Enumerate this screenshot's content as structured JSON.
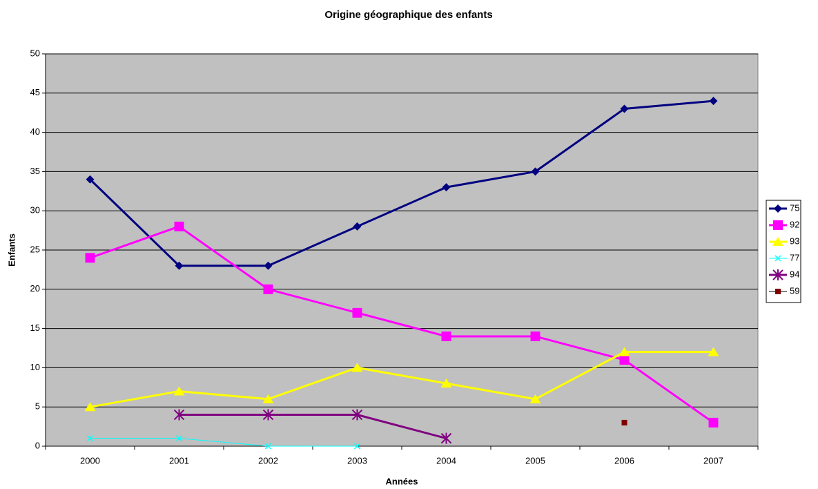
{
  "chart_data": {
    "type": "line",
    "title": "Origine géographique des enfants",
    "x_label": "Années",
    "y_label": "Enfants",
    "categories": [
      "2000",
      "2001",
      "2002",
      "2003",
      "2004",
      "2005",
      "2006",
      "2007"
    ],
    "series": [
      {
        "name": "75",
        "color": "#000080",
        "marker": "diamond",
        "line_width": 3,
        "values": [
          34,
          23,
          23,
          28,
          33,
          35,
          43,
          44
        ]
      },
      {
        "name": "92",
        "color": "#ff00ff",
        "marker": "square",
        "line_width": 3,
        "values": [
          24,
          28,
          20,
          17,
          14,
          14,
          11,
          3
        ]
      },
      {
        "name": "93",
        "color": "#ffff00",
        "marker": "triangle",
        "line_width": 3,
        "values": [
          5,
          7,
          6,
          10,
          8,
          6,
          12,
          12
        ]
      },
      {
        "name": "77",
        "color": "#00ffff",
        "marker": "x",
        "line_width": 1,
        "values": [
          1,
          1,
          0,
          0,
          null,
          null,
          null,
          null
        ]
      },
      {
        "name": "94",
        "color": "#800080",
        "marker": "asterisk",
        "line_width": 3,
        "values": [
          null,
          4,
          4,
          4,
          1,
          null,
          null,
          null
        ]
      },
      {
        "name": "59",
        "color": "#800000",
        "marker": "smallsquare",
        "line_width": 1,
        "values": [
          null,
          null,
          null,
          null,
          null,
          null,
          3,
          null
        ]
      }
    ],
    "ylim": [
      0,
      50
    ],
    "yticks": [
      0,
      5,
      10,
      15,
      20,
      25,
      30,
      35,
      40,
      45,
      50
    ],
    "grid": true,
    "plot_background": "#c0c0c0",
    "legend": "right"
  }
}
